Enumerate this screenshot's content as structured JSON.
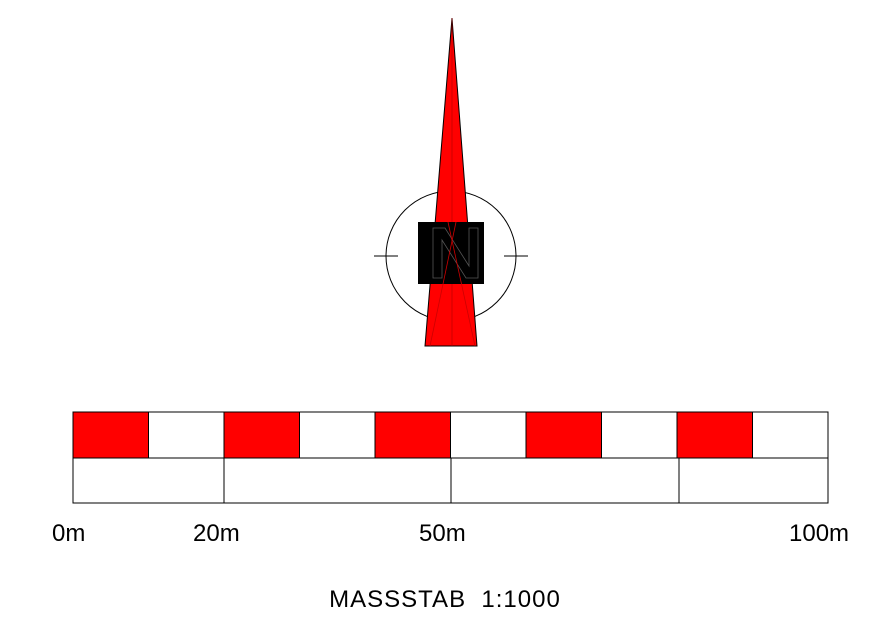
{
  "north_arrow": {
    "letter": "N",
    "needle_color": "#ff0000",
    "letter_color": "#000000",
    "icon": "north-arrow-icon"
  },
  "scale_bar": {
    "labels": [
      "0m",
      "20m",
      "50m",
      "100m"
    ],
    "fill_color": "#ff0000",
    "segments_top": 10,
    "segments_bottom": 4
  },
  "caption": "MASSSTAB  1:1000"
}
